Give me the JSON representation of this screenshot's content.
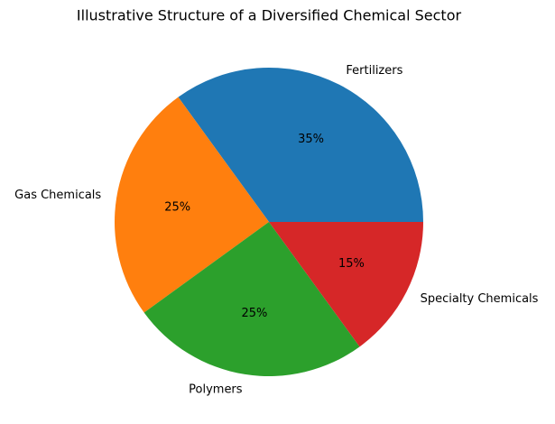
{
  "chart_data": {
    "type": "pie",
    "title": "Illustrative Structure of a Diversified Chemical Sector",
    "categories": [
      "Fertilizers",
      "Gas Chemicals",
      "Polymers",
      "Specialty Chemicals"
    ],
    "values": [
      35,
      25,
      25,
      15
    ],
    "value_labels": [
      "35%",
      "25%",
      "25%",
      "15%"
    ],
    "colors": [
      "#1f77b4",
      "#ff7f0e",
      "#2ca02c",
      "#d62728"
    ]
  }
}
